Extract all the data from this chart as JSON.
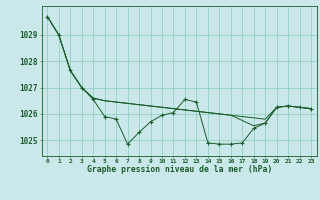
{
  "title": "Graphe pression niveau de la mer (hPa)",
  "background_color": "#cae8ea",
  "grid_color": "#88ccbb",
  "line_color": "#1a5c2a",
  "xlim": [
    -0.5,
    23.5
  ],
  "ylim": [
    1024.4,
    1030.1
  ],
  "yticks": [
    1025,
    1026,
    1027,
    1028,
    1029
  ],
  "xticks": [
    0,
    1,
    2,
    3,
    4,
    5,
    6,
    7,
    8,
    9,
    10,
    11,
    12,
    13,
    14,
    15,
    16,
    17,
    18,
    19,
    20,
    21,
    22,
    23
  ],
  "series": [
    [
      1029.7,
      1029.0,
      1027.65,
      1027.0,
      1026.55,
      1025.9,
      1025.8,
      1024.85,
      1025.3,
      1025.7,
      1025.95,
      1026.05,
      1026.55,
      1026.45,
      1024.9,
      1024.85,
      1024.85,
      1024.9,
      1025.45,
      1025.65,
      1026.25,
      1026.3,
      1026.25,
      1026.2
    ],
    [
      1029.7,
      1029.0,
      1027.65,
      1027.0,
      1026.6,
      1026.5,
      1026.45,
      1026.4,
      1026.35,
      1026.3,
      1026.25,
      1026.2,
      1026.15,
      1026.1,
      1026.05,
      1026.0,
      1025.95,
      1025.9,
      1025.85,
      1025.8,
      1026.25,
      1026.3,
      1026.25,
      1026.2
    ],
    [
      1029.7,
      1029.0,
      1027.65,
      1027.0,
      1026.6,
      1026.5,
      1026.45,
      1026.4,
      1026.35,
      1026.3,
      1026.25,
      1026.2,
      1026.15,
      1026.1,
      1026.05,
      1026.0,
      1025.95,
      1025.75,
      1025.55,
      1025.65,
      1026.25,
      1026.3,
      1026.25,
      1026.2
    ]
  ],
  "figsize": [
    3.2,
    2.0
  ],
  "dpi": 100
}
